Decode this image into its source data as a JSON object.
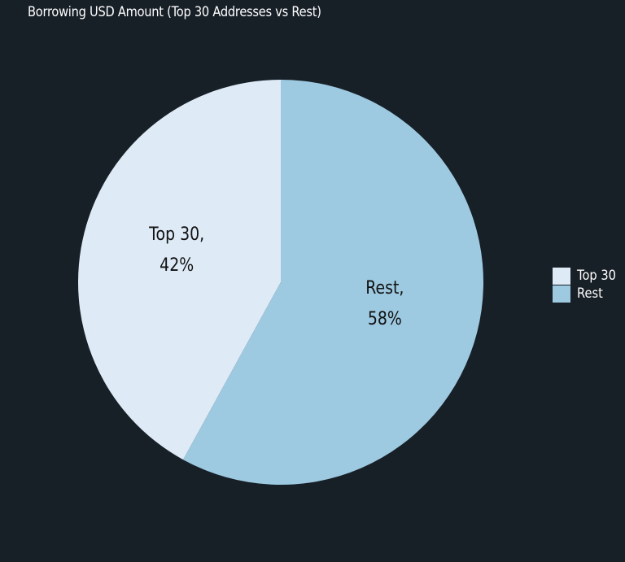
{
  "chart_data": {
    "type": "pie",
    "title": "Borrowing USD Amount (Top 30 Addresses vs Rest)",
    "slices": [
      {
        "label": "Top 30",
        "value": 42,
        "pct_label": "42%",
        "color": "#deebf7"
      },
      {
        "label": "Rest",
        "value": 58,
        "pct_label": "58%",
        "color": "#9ecae1"
      }
    ],
    "legend": {
      "position": "right",
      "entries": [
        "Top 30",
        "Rest"
      ]
    }
  },
  "colors": {
    "background": "#171f27",
    "title_text": "#ffffff",
    "slice_label_text": "#111111"
  }
}
